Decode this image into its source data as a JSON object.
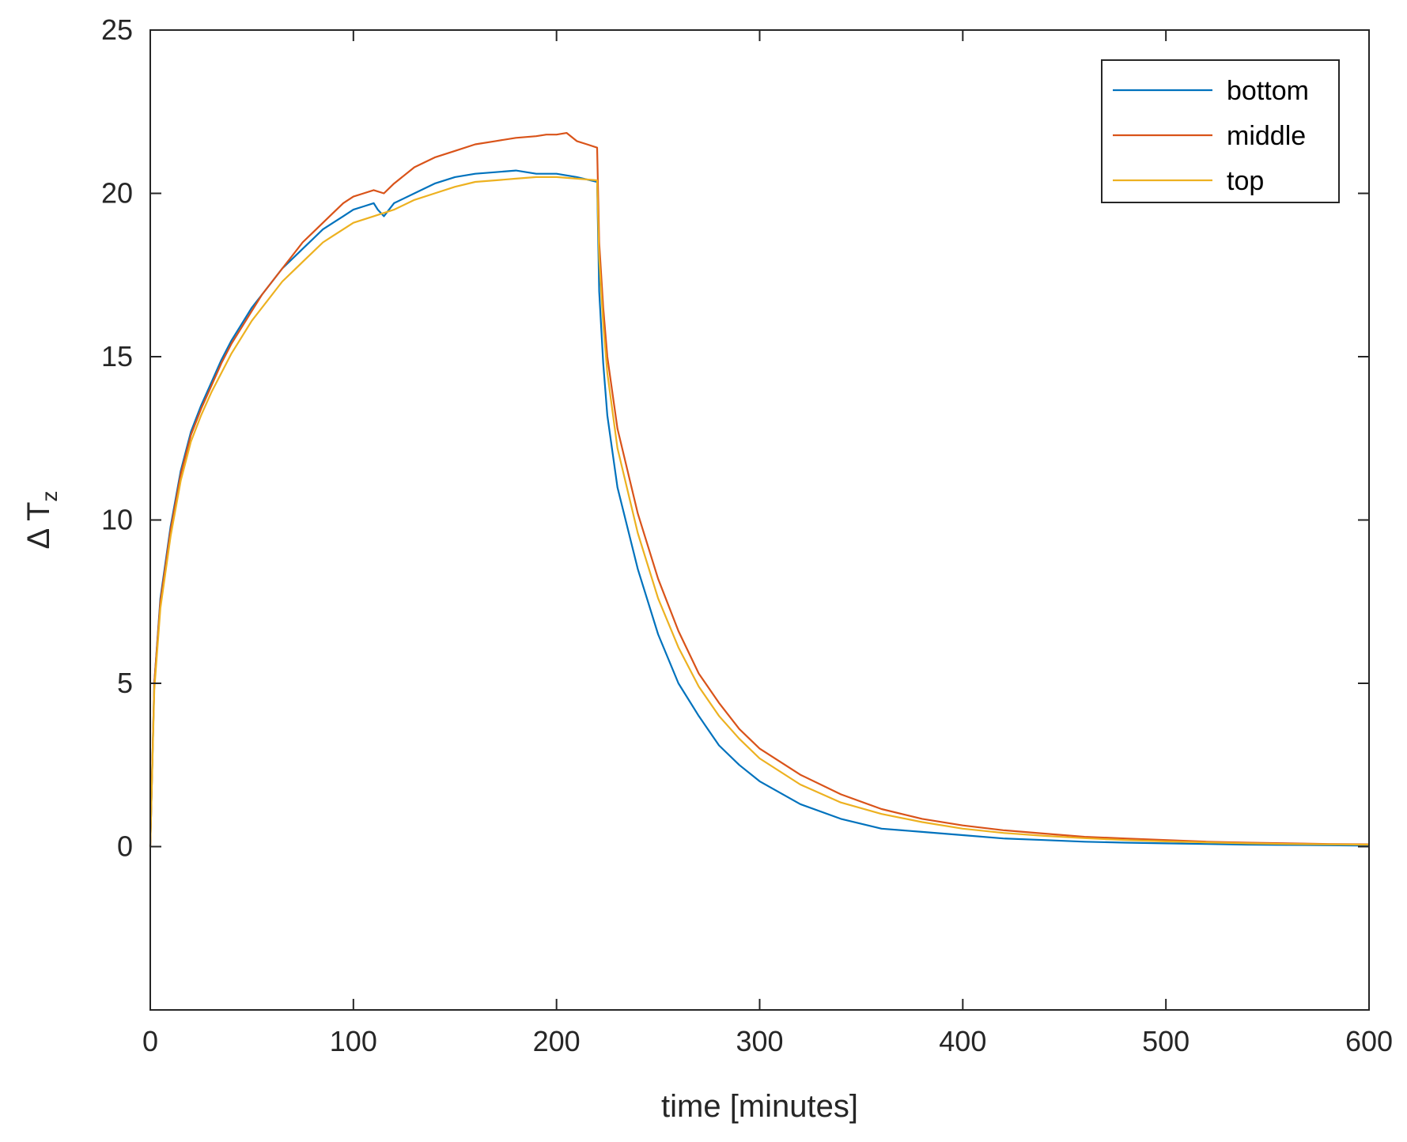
{
  "chart_data": {
    "type": "line",
    "title": "",
    "xlabel": "time [minutes]",
    "ylabel_symbol": "Δ T",
    "ylabel_subscript": "z",
    "xlim": [
      0,
      600
    ],
    "ylim": [
      -5,
      25
    ],
    "xticks": [
      0,
      100,
      200,
      300,
      400,
      500,
      600
    ],
    "yticks": [
      0,
      5,
      10,
      15,
      20,
      25
    ],
    "grid": false,
    "legend_position": "top-right",
    "series": [
      {
        "name": "bottom",
        "color": "#0072BD",
        "x": [
          0,
          2,
          5,
          10,
          15,
          20,
          25,
          30,
          35,
          40,
          45,
          50,
          55,
          60,
          65,
          70,
          75,
          80,
          85,
          90,
          95,
          100,
          105,
          110,
          112,
          115,
          120,
          130,
          140,
          150,
          160,
          170,
          180,
          190,
          200,
          210,
          220,
          221,
          223,
          225,
          230,
          240,
          250,
          260,
          270,
          280,
          290,
          300,
          320,
          340,
          360,
          380,
          400,
          420,
          440,
          460,
          480,
          500,
          520,
          540,
          560,
          580,
          600
        ],
        "y": [
          0,
          5.0,
          7.6,
          9.8,
          11.5,
          12.7,
          13.5,
          14.2,
          14.9,
          15.5,
          16.0,
          16.5,
          16.9,
          17.3,
          17.7,
          18.0,
          18.3,
          18.6,
          18.9,
          19.1,
          19.3,
          19.5,
          19.6,
          19.7,
          19.5,
          19.3,
          19.7,
          20.0,
          20.3,
          20.5,
          20.6,
          20.65,
          20.7,
          20.6,
          20.6,
          20.5,
          20.35,
          17.0,
          14.8,
          13.2,
          11.0,
          8.5,
          6.5,
          5.0,
          4.0,
          3.1,
          2.5,
          2.0,
          1.3,
          0.85,
          0.55,
          0.45,
          0.35,
          0.25,
          0.2,
          0.15,
          0.12,
          0.1,
          0.08,
          0.06,
          0.05,
          0.04,
          0.03
        ]
      },
      {
        "name": "middle",
        "color": "#D95319",
        "x": [
          0,
          2,
          5,
          10,
          15,
          20,
          25,
          30,
          35,
          40,
          45,
          50,
          55,
          60,
          65,
          70,
          75,
          80,
          85,
          90,
          95,
          100,
          105,
          110,
          115,
          120,
          130,
          140,
          150,
          160,
          170,
          180,
          190,
          195,
          200,
          205,
          210,
          215,
          220,
          221,
          223,
          225,
          230,
          240,
          250,
          260,
          270,
          280,
          290,
          300,
          320,
          340,
          360,
          380,
          400,
          420,
          440,
          460,
          480,
          500,
          520,
          540,
          560,
          580,
          600
        ],
        "y": [
          0,
          5.0,
          7.5,
          9.7,
          11.4,
          12.6,
          13.4,
          14.1,
          14.8,
          15.4,
          15.9,
          16.4,
          16.9,
          17.3,
          17.7,
          18.1,
          18.5,
          18.8,
          19.1,
          19.4,
          19.7,
          19.9,
          20.0,
          20.1,
          20.0,
          20.3,
          20.8,
          21.1,
          21.3,
          21.5,
          21.6,
          21.7,
          21.75,
          21.8,
          21.8,
          21.85,
          21.6,
          21.5,
          21.4,
          18.5,
          16.5,
          15.0,
          12.8,
          10.2,
          8.2,
          6.6,
          5.3,
          4.4,
          3.6,
          3.0,
          2.2,
          1.6,
          1.15,
          0.85,
          0.65,
          0.5,
          0.4,
          0.3,
          0.25,
          0.2,
          0.15,
          0.12,
          0.1,
          0.08,
          0.07
        ]
      },
      {
        "name": "top",
        "color": "#EDB120",
        "x": [
          0,
          2,
          5,
          10,
          15,
          20,
          25,
          30,
          35,
          40,
          45,
          50,
          55,
          60,
          65,
          70,
          75,
          80,
          85,
          90,
          95,
          100,
          110,
          120,
          130,
          140,
          150,
          160,
          170,
          180,
          190,
          200,
          210,
          220,
          221,
          223,
          225,
          230,
          240,
          250,
          260,
          270,
          280,
          290,
          300,
          320,
          340,
          360,
          380,
          400,
          420,
          440,
          460,
          480,
          500,
          520,
          540,
          560,
          580,
          600
        ],
        "y": [
          0,
          4.8,
          7.3,
          9.5,
          11.2,
          12.4,
          13.2,
          13.9,
          14.5,
          15.1,
          15.6,
          16.1,
          16.5,
          16.9,
          17.3,
          17.6,
          17.9,
          18.2,
          18.5,
          18.7,
          18.9,
          19.1,
          19.3,
          19.5,
          19.8,
          20.0,
          20.2,
          20.35,
          20.4,
          20.45,
          20.5,
          20.5,
          20.45,
          20.4,
          18.0,
          16.0,
          14.5,
          12.2,
          9.6,
          7.6,
          6.1,
          4.9,
          4.0,
          3.3,
          2.7,
          1.9,
          1.35,
          1.0,
          0.75,
          0.55,
          0.42,
          0.33,
          0.26,
          0.2,
          0.16,
          0.13,
          0.1,
          0.08,
          0.07,
          0.06
        ]
      }
    ]
  }
}
